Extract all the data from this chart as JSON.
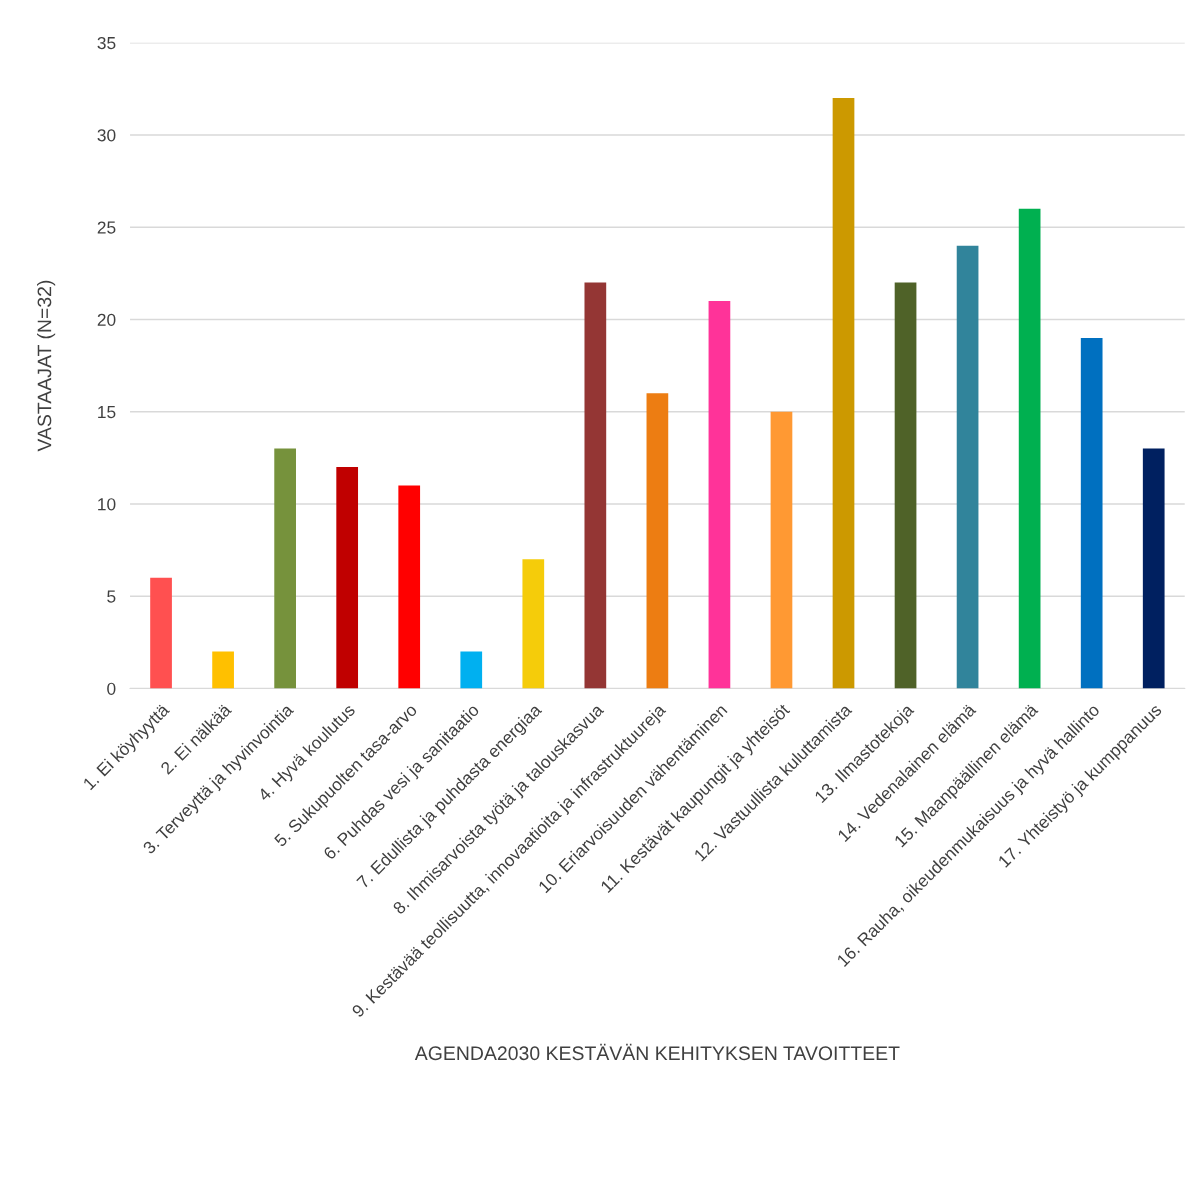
{
  "chart_data": {
    "type": "bar",
    "xlabel": "AGENDA2030 KESTÄVÄN KEHITYKSEN TAVOITTEET",
    "ylabel": "VASTAAJAT (N=32)",
    "categories": [
      "1. Ei köyhyyttä",
      "2. Ei nälkää",
      "3. Terveyttä ja hyvinvointia",
      "4. Hyvä koulutus",
      "5. Sukupuolten tasa-arvo",
      "6. Puhdas vesi ja sanitaatio",
      "7. Edullista ja puhdasta energiaa",
      "8. Ihmisarvoista työtä ja talouskasvua",
      "9. Kestävää teollisuutta, innovaatioita ja infrastruktuureja",
      "10. Eriarvoisuuden vähentäminen",
      "11. Kestävät kaupungit ja yhteisöt",
      "12. Vastuullista kuluttamista",
      "13. Ilmastotekoja",
      "14. Vedenalainen elämä",
      "15. Maanpäällinen elämä",
      "16. Rauha, oikeudenmukaisuus ja hyvä hallinto",
      "17. Yhteistyö ja kumppanuus"
    ],
    "values": [
      6,
      2,
      13,
      12,
      11,
      2,
      7,
      22,
      16,
      21,
      15,
      32,
      22,
      24,
      26,
      19,
      13
    ],
    "colors": [
      "#ff5050",
      "#ffc000",
      "#76923c",
      "#c00000",
      "#ff0000",
      "#00b0f0",
      "#f5cc0a",
      "#943634",
      "#ed7d12",
      "#ff3399",
      "#ff9933",
      "#cc9900",
      "#4f6228",
      "#31849b",
      "#00b050",
      "#0070c0",
      "#002060"
    ],
    "ylim": [
      0,
      35
    ],
    "yticks": [
      0,
      5,
      10,
      15,
      20,
      25,
      30,
      35
    ],
    "grid": "y"
  }
}
